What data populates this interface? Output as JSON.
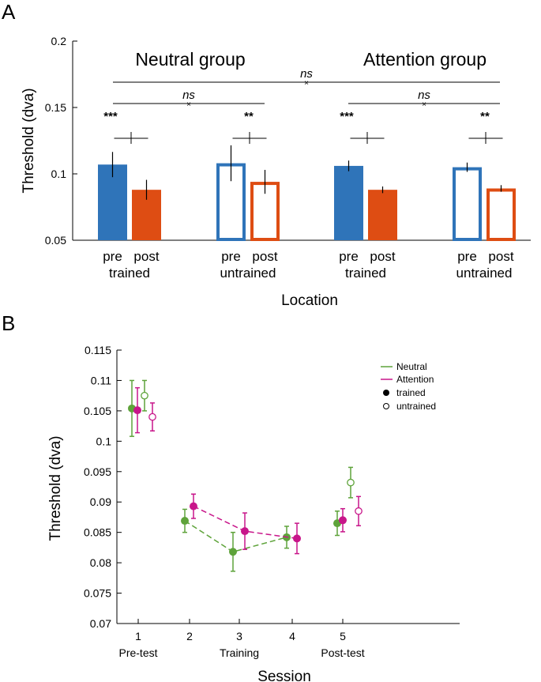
{
  "colors": {
    "blue": "#2f74b9",
    "orange": "#de4d13",
    "green": "#5ea33a",
    "magenta": "#c8168a"
  },
  "chart_data": [
    {
      "panel": "A",
      "type": "bar",
      "ylabel": "Threshold (dva)",
      "xlabel": "Location",
      "ylim": [
        0.05,
        0.2
      ],
      "yticks": [
        "0.05",
        "0.1",
        "0.15",
        "0.2"
      ],
      "group_titles": [
        "Neutral group",
        "Attention group"
      ],
      "bars": [
        {
          "group": "Neutral group",
          "location": "trained",
          "session": "pre",
          "value": 0.107,
          "err": 0.0095,
          "fill": "solid",
          "color": "blue"
        },
        {
          "group": "Neutral group",
          "location": "trained",
          "session": "post",
          "value": 0.088,
          "err": 0.0075,
          "fill": "solid",
          "color": "orange"
        },
        {
          "group": "Neutral group",
          "location": "untrained",
          "session": "pre",
          "value": 0.108,
          "err": 0.0135,
          "fill": "open",
          "color": "blue"
        },
        {
          "group": "Neutral group",
          "location": "untrained",
          "session": "post",
          "value": 0.094,
          "err": 0.009,
          "fill": "open",
          "color": "orange"
        },
        {
          "group": "Attention group",
          "location": "trained",
          "session": "pre",
          "value": 0.106,
          "err": 0.004,
          "fill": "solid",
          "color": "blue"
        },
        {
          "group": "Attention group",
          "location": "trained",
          "session": "post",
          "value": 0.088,
          "err": 0.0025,
          "fill": "solid",
          "color": "orange"
        },
        {
          "group": "Attention group",
          "location": "untrained",
          "session": "pre",
          "value": 0.105,
          "err": 0.0035,
          "fill": "open",
          "color": "blue"
        },
        {
          "group": "Attention group",
          "location": "untrained",
          "session": "post",
          "value": 0.089,
          "err": 0.0025,
          "fill": "open",
          "color": "orange"
        }
      ],
      "pair_labels": [
        {
          "pre": "pre",
          "post": "post",
          "location": "trained"
        },
        {
          "pre": "pre",
          "post": "post",
          "location": "untrained"
        },
        {
          "pre": "pre",
          "post": "post",
          "location": "trained"
        },
        {
          "pre": "pre",
          "post": "post",
          "location": "untrained"
        }
      ],
      "significance": [
        "***",
        "**",
        "***",
        "**"
      ],
      "ns_labels": [
        "ns",
        "ns",
        "ns"
      ]
    },
    {
      "panel": "B",
      "type": "line",
      "ylabel": "Threshold (dva)",
      "xlabel": "Session",
      "ylim": [
        0.07,
        0.115
      ],
      "yticks": [
        "0.07",
        "0.075",
        "0.08",
        "0.085",
        "0.09",
        "0.095",
        "0.1",
        "0.105",
        "0.11",
        "0.115"
      ],
      "xticks": [
        "1",
        "2",
        "3",
        "4",
        "5"
      ],
      "xsublabels": [
        "Pre-test",
        "",
        "Training",
        "",
        "Post-test"
      ],
      "legend": {
        "neutral": "Neutral",
        "attention": "Attention",
        "trained": "trained",
        "untrained": "untrained"
      },
      "series": [
        {
          "name": "Neutral",
          "color": "green",
          "trained": [
            {
              "session": 1,
              "value": 0.1054,
              "err": 0.0046
            },
            {
              "session": 5,
              "value": 0.0865,
              "err": 0.002
            }
          ],
          "untrained": [
            {
              "session": 1,
              "value": 0.1075,
              "err": 0.0025
            },
            {
              "session": 5,
              "value": 0.0932,
              "err": 0.0025
            }
          ],
          "training": [
            {
              "session": 2,
              "value": 0.0869,
              "err": 0.0019
            },
            {
              "session": 3,
              "value": 0.0818,
              "err": 0.0032
            },
            {
              "session": 4,
              "value": 0.0842,
              "err": 0.0018
            }
          ]
        },
        {
          "name": "Attention",
          "color": "magenta",
          "trained": [
            {
              "session": 1,
              "value": 0.1051,
              "err": 0.0037
            },
            {
              "session": 5,
              "value": 0.087,
              "err": 0.0019
            }
          ],
          "untrained": [
            {
              "session": 1,
              "value": 0.104,
              "err": 0.0023
            },
            {
              "session": 5,
              "value": 0.0885,
              "err": 0.0024
            }
          ],
          "training": [
            {
              "session": 2,
              "value": 0.0893,
              "err": 0.002
            },
            {
              "session": 3,
              "value": 0.0852,
              "err": 0.003
            },
            {
              "session": 4,
              "value": 0.084,
              "err": 0.0025
            }
          ]
        }
      ]
    }
  ]
}
